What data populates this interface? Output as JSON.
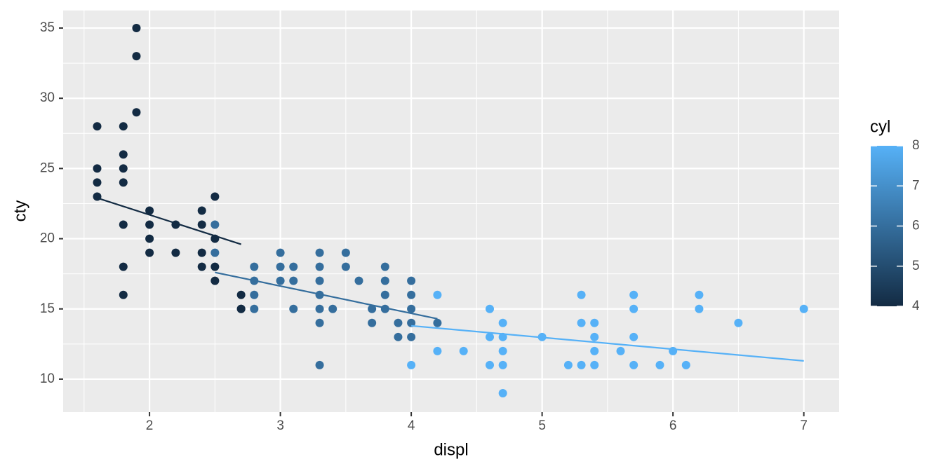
{
  "chart_data": {
    "type": "scatter",
    "x_label": "displ",
    "y_label": "cty",
    "xlim": [
      1.34,
      7.27
    ],
    "ylim": [
      7.65,
      36.25
    ],
    "xticks": [
      2,
      3,
      4,
      5,
      6,
      7
    ],
    "yticks": [
      10,
      15,
      20,
      25,
      30,
      35
    ],
    "x_minor_ticks": [
      1.5,
      2.5,
      3.5,
      4.5,
      5.5,
      6.5
    ],
    "y_minor_ticks": [
      12.5,
      17.5,
      22.5,
      27.5,
      32.5
    ],
    "grid": true,
    "color_title": "cyl",
    "color_low": "#132B43",
    "color_high": "#56B1F7",
    "color_lim": [
      4,
      8
    ],
    "color_ticks": [
      4,
      5,
      6,
      7,
      8
    ],
    "points": {
      "x": [
        1.6,
        1.6,
        1.6,
        1.6,
        1.8,
        1.8,
        1.8,
        1.8,
        1.8,
        1.8,
        1.8,
        1.9,
        1.9,
        1.9,
        2.0,
        2.0,
        2.0,
        2.0,
        2.2,
        2.2,
        2.4,
        2.4,
        2.4,
        2.4,
        2.5,
        2.5,
        2.5,
        2.5,
        2.7,
        2.7,
        2.7,
        2.5,
        2.5,
        2.8,
        2.8,
        2.8,
        2.8,
        3.0,
        3.0,
        3.0,
        3.1,
        3.1,
        3.1,
        3.3,
        3.3,
        3.3,
        3.3,
        3.3,
        3.3,
        3.3,
        3.4,
        3.5,
        3.5,
        3.6,
        3.7,
        3.7,
        3.8,
        3.8,
        3.8,
        3.8,
        3.9,
        3.9,
        4.0,
        4.0,
        4.0,
        4.0,
        4.0,
        4.2,
        4.0,
        4.2,
        4.2,
        4.4,
        4.6,
        4.6,
        4.6,
        4.7,
        4.7,
        4.7,
        4.7,
        4.7,
        5.0,
        5.2,
        5.3,
        5.3,
        5.3,
        5.4,
        5.4,
        5.4,
        5.4,
        5.6,
        5.7,
        5.7,
        5.7,
        5.7,
        5.9,
        6.0,
        6.1,
        6.2,
        6.2,
        6.5,
        7.0
      ],
      "y": [
        28,
        25,
        24,
        23,
        28,
        26,
        25,
        24,
        21,
        18,
        16,
        35,
        33,
        29,
        22,
        21,
        20,
        19,
        21,
        19,
        22,
        21,
        19,
        18,
        23,
        20,
        18,
        17,
        16,
        15,
        15,
        21,
        19,
        18,
        17,
        16,
        15,
        19,
        18,
        17,
        18,
        17,
        15,
        19,
        18,
        17,
        16,
        15,
        14,
        11,
        15,
        19,
        18,
        17,
        15,
        14,
        18,
        17,
        16,
        15,
        14,
        13,
        17,
        16,
        15,
        14,
        13,
        14,
        11,
        16,
        12,
        12,
        15,
        13,
        11,
        14,
        13,
        12,
        11,
        9,
        13,
        11,
        16,
        14,
        11,
        14,
        13,
        12,
        11,
        12,
        16,
        15,
        13,
        11,
        11,
        12,
        11,
        16,
        15,
        14,
        15
      ],
      "cyl": [
        4,
        4,
        4,
        4,
        4,
        4,
        4,
        4,
        4,
        4,
        4,
        4,
        4,
        4,
        4,
        4,
        4,
        4,
        4,
        4,
        4,
        4,
        4,
        4,
        4,
        4,
        4,
        4,
        4,
        4,
        4,
        6,
        6,
        6,
        6,
        6,
        6,
        6,
        6,
        6,
        6,
        6,
        6,
        6,
        6,
        6,
        6,
        6,
        6,
        6,
        6,
        6,
        6,
        6,
        6,
        6,
        6,
        6,
        6,
        6,
        6,
        6,
        6,
        6,
        6,
        6,
        6,
        6,
        8,
        8,
        8,
        8,
        8,
        8,
        8,
        8,
        8,
        8,
        8,
        8,
        8,
        8,
        8,
        8,
        8,
        8,
        8,
        8,
        8,
        8,
        8,
        8,
        8,
        8,
        8,
        8,
        8,
        8,
        8,
        8,
        8
      ]
    },
    "fits": [
      {
        "cyl": 4,
        "x": [
          1.6,
          2.7
        ],
        "y": [
          22.9,
          19.6
        ]
      },
      {
        "cyl": 6,
        "x": [
          2.5,
          4.2
        ],
        "y": [
          17.6,
          14.3
        ]
      },
      {
        "cyl": 8,
        "x": [
          4.0,
          7.0
        ],
        "y": [
          13.8,
          11.3
        ]
      }
    ]
  }
}
